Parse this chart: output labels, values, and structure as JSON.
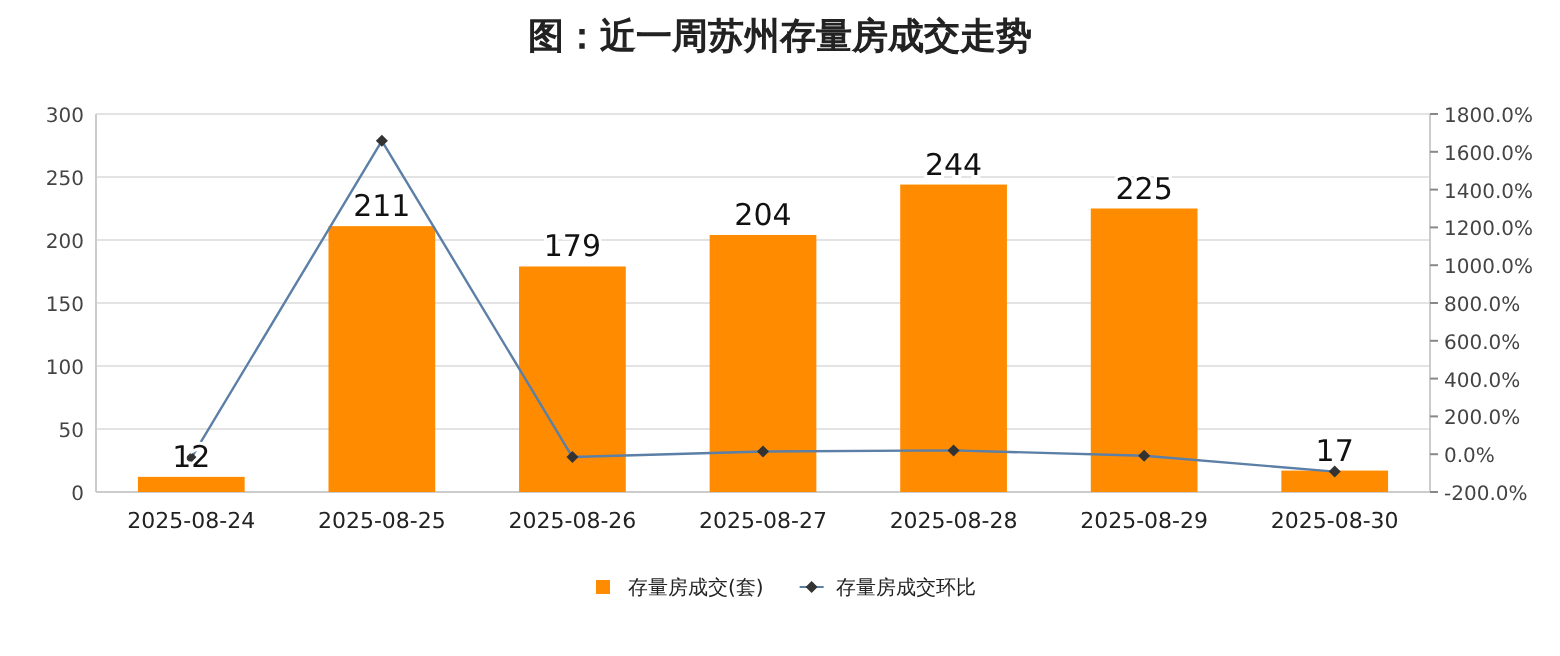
{
  "chart_data": {
    "type": "bar",
    "title": "图：近一周苏州存量房成交走势",
    "categories": [
      "2025-08-24",
      "2025-08-25",
      "2025-08-26",
      "2025-08-27",
      "2025-08-28",
      "2025-08-29",
      "2025-08-30"
    ],
    "series": [
      {
        "name": "存量房成交(套)",
        "color": "#ff8c00",
        "values": [
          12,
          211,
          179,
          204,
          244,
          225,
          17
        ],
        "value_labels": [
          "12",
          "211",
          "179",
          "204",
          "244",
          "225",
          "17"
        ]
      },
      {
        "name": "存量房成交环比",
        "type": "line",
        "axis": "y2",
        "color": "#5b7fa6",
        "marker": "diamond",
        "values": [
          -20,
          1658,
          -15,
          14,
          20,
          -8,
          -92
        ]
      }
    ],
    "ylim": [
      0,
      300
    ],
    "yticks": [
      0,
      50,
      100,
      150,
      200,
      250,
      300
    ],
    "y2lim": [
      -200,
      1800
    ],
    "y2ticks": [
      {
        "value": -200,
        "label": "-200.0%"
      },
      {
        "value": 0,
        "label": "0.0%"
      },
      {
        "value": 200,
        "label": "200.0%"
      },
      {
        "value": 400,
        "label": "400.0%"
      },
      {
        "value": 600,
        "label": "600.0%"
      },
      {
        "value": 800,
        "label": "800.0%"
      },
      {
        "value": 1000,
        "label": "1000.0%"
      },
      {
        "value": 1200,
        "label": "1200.0%"
      },
      {
        "value": 1400,
        "label": "1400.0%"
      },
      {
        "value": 1600,
        "label": "1600.0%"
      },
      {
        "value": 1800,
        "label": "1800.0%"
      }
    ],
    "grid": "y",
    "legend": "bottom"
  }
}
